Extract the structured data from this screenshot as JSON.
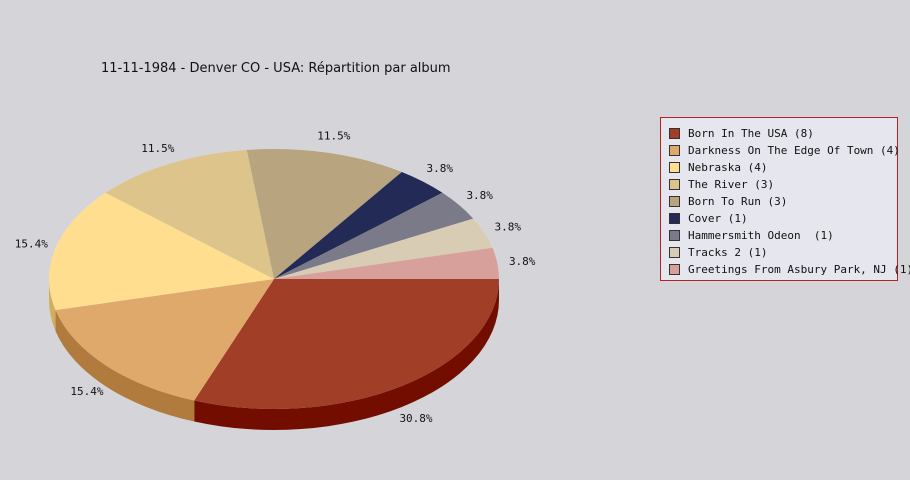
{
  "chart_data": {
    "type": "pie",
    "title": "11-11-1984 - Denver CO - USA:  Répartition par album",
    "legend_position": "right",
    "slices": [
      {
        "label": "Born In The USA (8)",
        "value": 8,
        "percent_label": "30.8%",
        "color": "#a03e28",
        "side_color": "#720d00"
      },
      {
        "label": "Darkness On The Edge Of Town (4)",
        "value": 4,
        "percent_label": "15.4%",
        "color": "#e0a96c",
        "side_color": "#b07b3c"
      },
      {
        "label": "Nebraska (4)",
        "value": 4,
        "percent_label": "15.4%",
        "color": "#ffdf8f",
        "side_color": "#cfaf5f"
      },
      {
        "label": "The River (3)",
        "value": 3,
        "percent_label": "11.5%",
        "color": "#dcc48a",
        "side_color": "#ac945a"
      },
      {
        "label": "Born To Run (3)",
        "value": 3,
        "percent_label": "11.5%",
        "color": "#b8a47e",
        "side_color": "#88744e"
      },
      {
        "label": "Cover (1)",
        "value": 1,
        "percent_label": "3.8%",
        "color": "#222a55",
        "side_color": "#0a1030"
      },
      {
        "label": "Hammersmith Odeon  (1)",
        "value": 1,
        "percent_label": "3.8%",
        "color": "#7a7a88",
        "side_color": "#4a4a58"
      },
      {
        "label": "Tracks 2 (1)",
        "value": 1,
        "percent_label": "3.8%",
        "color": "#d8ccb4",
        "side_color": "#a89c84"
      },
      {
        "label": "Greetings From Asbury Park, NJ (1)",
        "value": 1,
        "percent_label": "3.8%",
        "color": "#d8a09a",
        "side_color": "#a8706a"
      }
    ]
  }
}
